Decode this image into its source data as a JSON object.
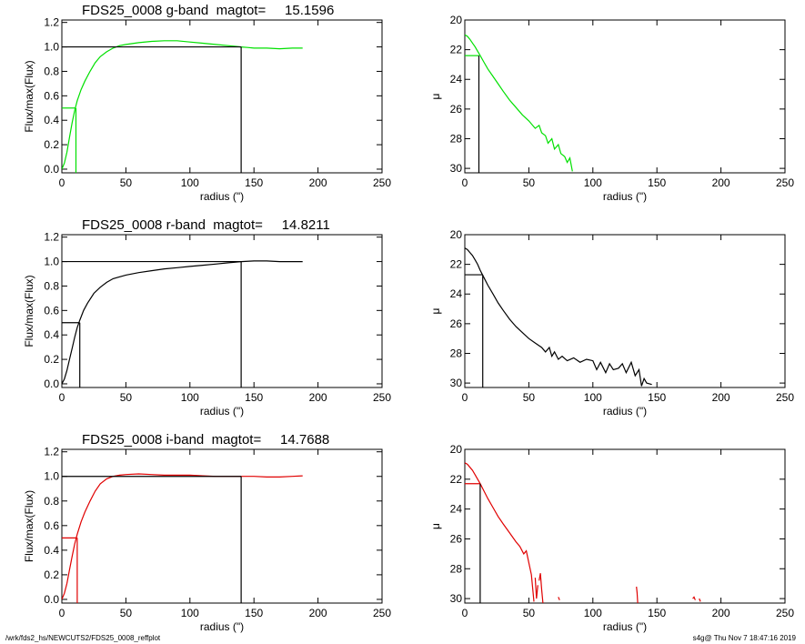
{
  "footer": {
    "left": "/wrk/fds2_hs/NEWCUTS2/FDS25_0008_reffplot",
    "right": "s4g@  Thu Nov  7 18:47:16 2019"
  },
  "colors": {
    "g": "#00e000",
    "r": "#000000",
    "i": "#e00000",
    "axis": "#000000"
  },
  "chart_data": [
    {
      "id": "g-growth",
      "type": "line",
      "title": "FDS25_0008 g-band  magtot=     15.1596",
      "xlabel": "radius (\")",
      "ylabel": "Flux/max(Flux)",
      "xlim": [
        0,
        250
      ],
      "ylim": [
        -0.03,
        1.22
      ],
      "xticks": [
        0,
        50,
        100,
        150,
        200,
        250
      ],
      "yticks": [
        0.0,
        0.2,
        0.4,
        0.6,
        0.8,
        1.0,
        1.2
      ],
      "ytick_labels": [
        "0.0",
        "0.2",
        "0.4",
        "0.6",
        "0.8",
        "1.0",
        "1.2"
      ],
      "grid": false,
      "series": [
        {
          "color_key": "g",
          "x": [
            0,
            2,
            4,
            6,
            8,
            10,
            12,
            15,
            18,
            22,
            26,
            30,
            35,
            40,
            45,
            50,
            60,
            70,
            80,
            90,
            100,
            110,
            120,
            130,
            140,
            145,
            150,
            160,
            170,
            180,
            188
          ],
          "y": [
            0.0,
            0.05,
            0.14,
            0.26,
            0.38,
            0.48,
            0.56,
            0.65,
            0.72,
            0.8,
            0.87,
            0.92,
            0.96,
            0.99,
            1.01,
            1.02,
            1.035,
            1.045,
            1.05,
            1.05,
            1.04,
            1.03,
            1.02,
            1.01,
            1.0,
            0.995,
            0.99,
            0.99,
            0.985,
            0.99,
            0.99
          ]
        }
      ],
      "total_radius": 140,
      "half_light_radius": 11,
      "half_light_level": 0.5
    },
    {
      "id": "g-profile",
      "type": "line",
      "xlabel": "radius (\")",
      "ylabel": "μ",
      "xlim": [
        0,
        250
      ],
      "ylim": [
        20.0,
        30.3
      ],
      "y_inverted": true,
      "xticks": [
        0,
        50,
        100,
        150,
        200,
        250
      ],
      "yticks": [
        20,
        22,
        24,
        26,
        28,
        30
      ],
      "grid": false,
      "series": [
        {
          "color_key": "g",
          "x": [
            0,
            2,
            4,
            6,
            8,
            10,
            12,
            15,
            18,
            22,
            26,
            30,
            35,
            40,
            45,
            50,
            55,
            58,
            60,
            63,
            65,
            68,
            70,
            73,
            75,
            78,
            80,
            82,
            84
          ],
          "y": [
            21.0,
            21.1,
            21.3,
            21.55,
            21.8,
            22.1,
            22.4,
            22.85,
            23.3,
            23.8,
            24.3,
            24.8,
            25.4,
            25.9,
            26.4,
            26.8,
            27.3,
            27.1,
            27.6,
            27.8,
            28.3,
            28.0,
            28.7,
            28.4,
            29.0,
            29.2,
            29.6,
            29.3,
            30.2
          ]
        }
      ],
      "reff_radius": 11,
      "mu_eff": 22.4
    },
    {
      "id": "r-growth",
      "type": "line",
      "title": "FDS25_0008 r-band  magtot=     14.8211",
      "xlabel": "radius (\")",
      "ylabel": "Flux/max(Flux)",
      "xlim": [
        0,
        250
      ],
      "ylim": [
        -0.03,
        1.22
      ],
      "xticks": [
        0,
        50,
        100,
        150,
        200,
        250
      ],
      "yticks": [
        0.0,
        0.2,
        0.4,
        0.6,
        0.8,
        1.0,
        1.2
      ],
      "ytick_labels": [
        "0.0",
        "0.2",
        "0.4",
        "0.6",
        "0.8",
        "1.0",
        "1.2"
      ],
      "grid": false,
      "series": [
        {
          "color_key": "r",
          "x": [
            0,
            2,
            4,
            6,
            8,
            10,
            12,
            14,
            17,
            20,
            25,
            30,
            35,
            40,
            50,
            60,
            70,
            80,
            90,
            100,
            110,
            120,
            130,
            140,
            150,
            160,
            170,
            180,
            188
          ],
          "y": [
            0.0,
            0.04,
            0.11,
            0.2,
            0.29,
            0.38,
            0.46,
            0.52,
            0.6,
            0.66,
            0.74,
            0.79,
            0.83,
            0.86,
            0.89,
            0.91,
            0.925,
            0.94,
            0.95,
            0.96,
            0.97,
            0.98,
            0.99,
            1.0,
            1.005,
            1.005,
            1.0,
            1.0,
            1.0
          ]
        }
      ],
      "total_radius": 140,
      "half_light_radius": 14,
      "half_light_level": 0.5
    },
    {
      "id": "r-profile",
      "type": "line",
      "xlabel": "radius (\")",
      "ylabel": "μ",
      "xlim": [
        0,
        250
      ],
      "ylim": [
        20.0,
        30.3
      ],
      "y_inverted": true,
      "xticks": [
        0,
        50,
        100,
        150,
        200,
        250
      ],
      "yticks": [
        20,
        22,
        24,
        26,
        28,
        30
      ],
      "grid": false,
      "series": [
        {
          "color_key": "r",
          "x": [
            0,
            2,
            4,
            6,
            8,
            10,
            12,
            15,
            18,
            22,
            26,
            30,
            35,
            40,
            45,
            50,
            55,
            60,
            63,
            66,
            68,
            70,
            73,
            76,
            80,
            85,
            90,
            95,
            100,
            103,
            106,
            110,
            113,
            116,
            120,
            123,
            126,
            130,
            133,
            136,
            138,
            140,
            142,
            146
          ],
          "y": [
            20.9,
            21.0,
            21.2,
            21.4,
            21.7,
            22.0,
            22.4,
            22.9,
            23.4,
            24.0,
            24.6,
            25.1,
            25.7,
            26.2,
            26.6,
            27.0,
            27.3,
            27.6,
            27.9,
            27.6,
            28.2,
            27.9,
            28.4,
            28.2,
            28.5,
            28.3,
            28.6,
            28.4,
            28.5,
            29.1,
            28.6,
            29.3,
            28.7,
            29.1,
            29.0,
            28.7,
            29.3,
            28.6,
            29.5,
            29.1,
            30.2,
            29.7,
            30.0,
            30.1
          ]
        }
      ],
      "reff_radius": 14,
      "mu_eff": 22.7
    },
    {
      "id": "i-growth",
      "type": "line",
      "title": "FDS25_0008 i-band  magtot=     14.7688",
      "xlabel": "radius (\")",
      "ylabel": "Flux/max(Flux)",
      "xlim": [
        0,
        250
      ],
      "ylim": [
        -0.03,
        1.22
      ],
      "xticks": [
        0,
        50,
        100,
        150,
        200,
        250
      ],
      "yticks": [
        0.0,
        0.2,
        0.4,
        0.6,
        0.8,
        1.0,
        1.2
      ],
      "ytick_labels": [
        "0.0",
        "0.2",
        "0.4",
        "0.6",
        "0.8",
        "1.0",
        "1.2"
      ],
      "grid": false,
      "series": [
        {
          "color_key": "i",
          "x": [
            0,
            2,
            4,
            6,
            8,
            10,
            12,
            15,
            18,
            22,
            26,
            30,
            35,
            40,
            45,
            50,
            60,
            70,
            80,
            90,
            100,
            110,
            120,
            130,
            140,
            150,
            160,
            170,
            180,
            188
          ],
          "y": [
            0.0,
            0.05,
            0.13,
            0.24,
            0.35,
            0.45,
            0.53,
            0.63,
            0.71,
            0.8,
            0.88,
            0.94,
            0.98,
            1.0,
            1.01,
            1.015,
            1.02,
            1.015,
            1.01,
            1.01,
            1.01,
            1.005,
            1.0,
            1.0,
            1.0,
            1.0,
            0.995,
            0.995,
            1.0,
            1.005
          ]
        }
      ],
      "total_radius": 140,
      "half_light_radius": 12,
      "half_light_level": 0.5
    },
    {
      "id": "i-profile",
      "type": "line",
      "xlabel": "radius (\")",
      "ylabel": "μ",
      "xlim": [
        0,
        250
      ],
      "ylim": [
        20.0,
        30.3
      ],
      "y_inverted": true,
      "xticks": [
        0,
        50,
        100,
        150,
        200,
        250
      ],
      "yticks": [
        20,
        22,
        24,
        26,
        28,
        30
      ],
      "grid": false,
      "series": [
        {
          "color_key": "i",
          "x": [
            0,
            2,
            4,
            6,
            8,
            10,
            12,
            15,
            18,
            22,
            26,
            30,
            35,
            40,
            43,
            46,
            48,
            50,
            52,
            54
          ],
          "y": [
            20.9,
            21.0,
            21.2,
            21.4,
            21.7,
            22.0,
            22.3,
            22.8,
            23.3,
            23.9,
            24.5,
            25.0,
            25.6,
            26.2,
            26.5,
            27.0,
            26.8,
            27.6,
            28.4,
            30.2
          ]
        }
      ],
      "extra_segments": [
        {
          "x": [
            55,
            56,
            57
          ],
          "y": [
            28.6,
            30.0,
            29.1
          ]
        },
        {
          "x": [
            58,
            59,
            60,
            61
          ],
          "y": [
            28.8,
            28.3,
            29.4,
            30.3
          ]
        },
        {
          "x": [
            73,
            74
          ],
          "y": [
            29.9,
            30.1
          ]
        },
        {
          "x": [
            134,
            134.5,
            135
          ],
          "y": [
            29.2,
            29.6,
            30.3
          ]
        },
        {
          "x": [
            178,
            179,
            180
          ],
          "y": [
            30.0,
            29.9,
            30.1
          ]
        },
        {
          "x": [
            183,
            184
          ],
          "y": [
            30.0,
            30.2
          ]
        }
      ],
      "reff_radius": 12,
      "mu_eff": 22.3
    }
  ]
}
